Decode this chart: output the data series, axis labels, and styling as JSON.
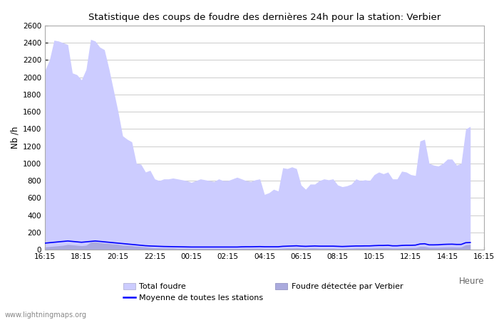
{
  "title": "Statistique des coups de foudre des dernières 24h pour la station: Verbier",
  "xlabel": "Heure",
  "ylabel": "Nb /h",
  "xlim": [
    0,
    96
  ],
  "ylim": [
    0,
    2600
  ],
  "yticks": [
    0,
    200,
    400,
    600,
    800,
    1000,
    1200,
    1400,
    1600,
    1800,
    2000,
    2200,
    2400,
    2600
  ],
  "xtick_labels": [
    "16:15",
    "18:15",
    "20:15",
    "22:15",
    "00:15",
    "02:15",
    "04:15",
    "06:15",
    "08:15",
    "10:15",
    "12:15",
    "14:15",
    "16:15"
  ],
  "xtick_positions": [
    0,
    8,
    16,
    24,
    32,
    40,
    48,
    56,
    64,
    72,
    80,
    88,
    96
  ],
  "background_color": "#ffffff",
  "plot_bg_color": "#ffffff",
  "grid_color": "#cccccc",
  "total_foudre_color": "#ccccff",
  "verbier_color": "#aaaadd",
  "moyenne_color": "#0000ff",
  "watermark": "www.lightningmaps.org",
  "total_foudre": [
    2080,
    2200,
    2430,
    2420,
    2400,
    2380,
    2050,
    2030,
    1970,
    2090,
    2440,
    2420,
    2350,
    2320,
    2100,
    1850,
    1600,
    1320,
    1280,
    1250,
    1000,
    990,
    900,
    920,
    820,
    800,
    820,
    820,
    830,
    820,
    810,
    800,
    780,
    800,
    820,
    810,
    800,
    790,
    820,
    800,
    800,
    820,
    840,
    820,
    800,
    790,
    810,
    820,
    640,
    660,
    700,
    680,
    950,
    940,
    960,
    940,
    750,
    700,
    760,
    760,
    800,
    820,
    810,
    820,
    750,
    730,
    740,
    760,
    820,
    800,
    810,
    800,
    870,
    900,
    880,
    900,
    820,
    820,
    910,
    900,
    870,
    860,
    1260,
    1280,
    1000,
    980,
    970,
    1000,
    1050,
    1050,
    980,
    1000,
    1400,
    1430
  ],
  "verbier": [
    30,
    35,
    40,
    45,
    50,
    60,
    55,
    50,
    45,
    50,
    85,
    90,
    80,
    75,
    70,
    65,
    60,
    50,
    50,
    45,
    40,
    35,
    30,
    25,
    20,
    20,
    18,
    18,
    18,
    15,
    15,
    15,
    12,
    12,
    12,
    12,
    12,
    12,
    12,
    12,
    12,
    12,
    12,
    15,
    15,
    15,
    15,
    15,
    12,
    12,
    12,
    12,
    15,
    18,
    18,
    20,
    18,
    15,
    18,
    18,
    15,
    15,
    15,
    15,
    12,
    12,
    15,
    15,
    18,
    18,
    18,
    18,
    20,
    22,
    22,
    22,
    18,
    18,
    20,
    22,
    22,
    22,
    35,
    35,
    25,
    25,
    25,
    28,
    30,
    30,
    28,
    28,
    55,
    60
  ],
  "moyenne": [
    75,
    80,
    85,
    90,
    95,
    100,
    95,
    90,
    85,
    90,
    95,
    100,
    95,
    90,
    85,
    80,
    75,
    70,
    65,
    60,
    55,
    50,
    45,
    42,
    40,
    38,
    36,
    35,
    34,
    33,
    32,
    31,
    30,
    30,
    30,
    30,
    30,
    30,
    30,
    30,
    30,
    30,
    30,
    32,
    33,
    33,
    34,
    35,
    33,
    33,
    33,
    33,
    38,
    40,
    42,
    44,
    40,
    38,
    40,
    42,
    40,
    40,
    40,
    40,
    38,
    36,
    38,
    40,
    42,
    42,
    43,
    43,
    46,
    48,
    48,
    50,
    44,
    44,
    48,
    50,
    50,
    52,
    65,
    68,
    55,
    55,
    56,
    60,
    62,
    63,
    60,
    60,
    80,
    82
  ]
}
